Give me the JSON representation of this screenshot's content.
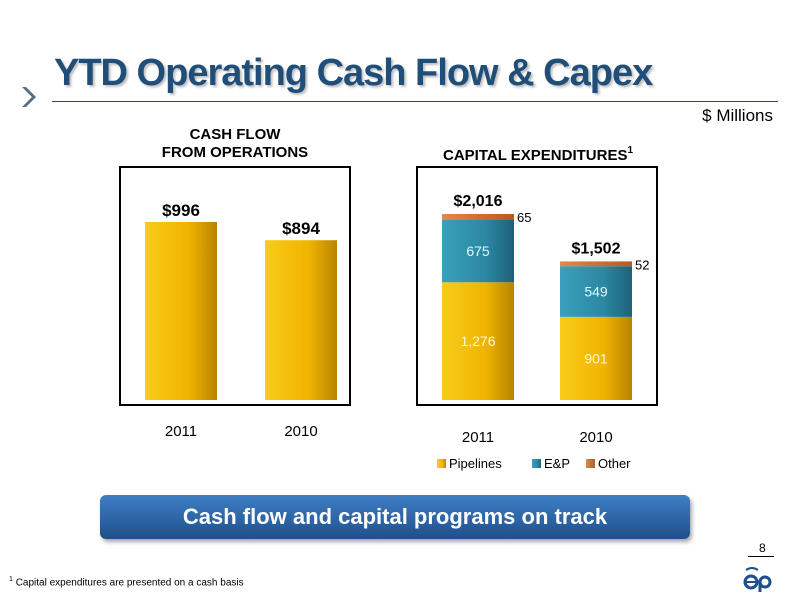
{
  "title": "YTD Operating Cash Flow & Capex",
  "units": "$ Millions",
  "banner": "Cash flow and capital programs on track",
  "page_number": "8",
  "footnote_mark": "1",
  "footnote_text": "Capital expenditures are presented on a cash basis",
  "colors": {
    "title": "#1f4e79",
    "pipelines": "#f2b800",
    "ep": "#2e8ba6",
    "other": "#d07230",
    "banner": "#1e4f8c"
  },
  "chart_data": [
    {
      "type": "bar",
      "title": "CASH FLOW\nFROM OPERATIONS",
      "categories": [
        "2011",
        "2010"
      ],
      "values": [
        996,
        894
      ],
      "value_labels": [
        "$996",
        "$894"
      ],
      "ylim": [
        0,
        1400
      ],
      "grid": false
    },
    {
      "type": "bar",
      "stacked": true,
      "title": "CAPITAL EXPENDITURES",
      "title_sup": "1",
      "categories": [
        "2011",
        "2010"
      ],
      "series": [
        {
          "name": "Pipelines",
          "values": [
            1276,
            901
          ],
          "labels": [
            "1,276",
            "901"
          ]
        },
        {
          "name": "E&P",
          "values": [
            675,
            549
          ],
          "labels": [
            "675",
            "549"
          ]
        },
        {
          "name": "Other",
          "values": [
            65,
            52
          ],
          "labels": [
            "65",
            "52"
          ]
        }
      ],
      "totals": [
        "$2,016",
        "$1,502"
      ],
      "ylim": [
        0,
        2600
      ],
      "legend": "bottom",
      "grid": false
    }
  ]
}
